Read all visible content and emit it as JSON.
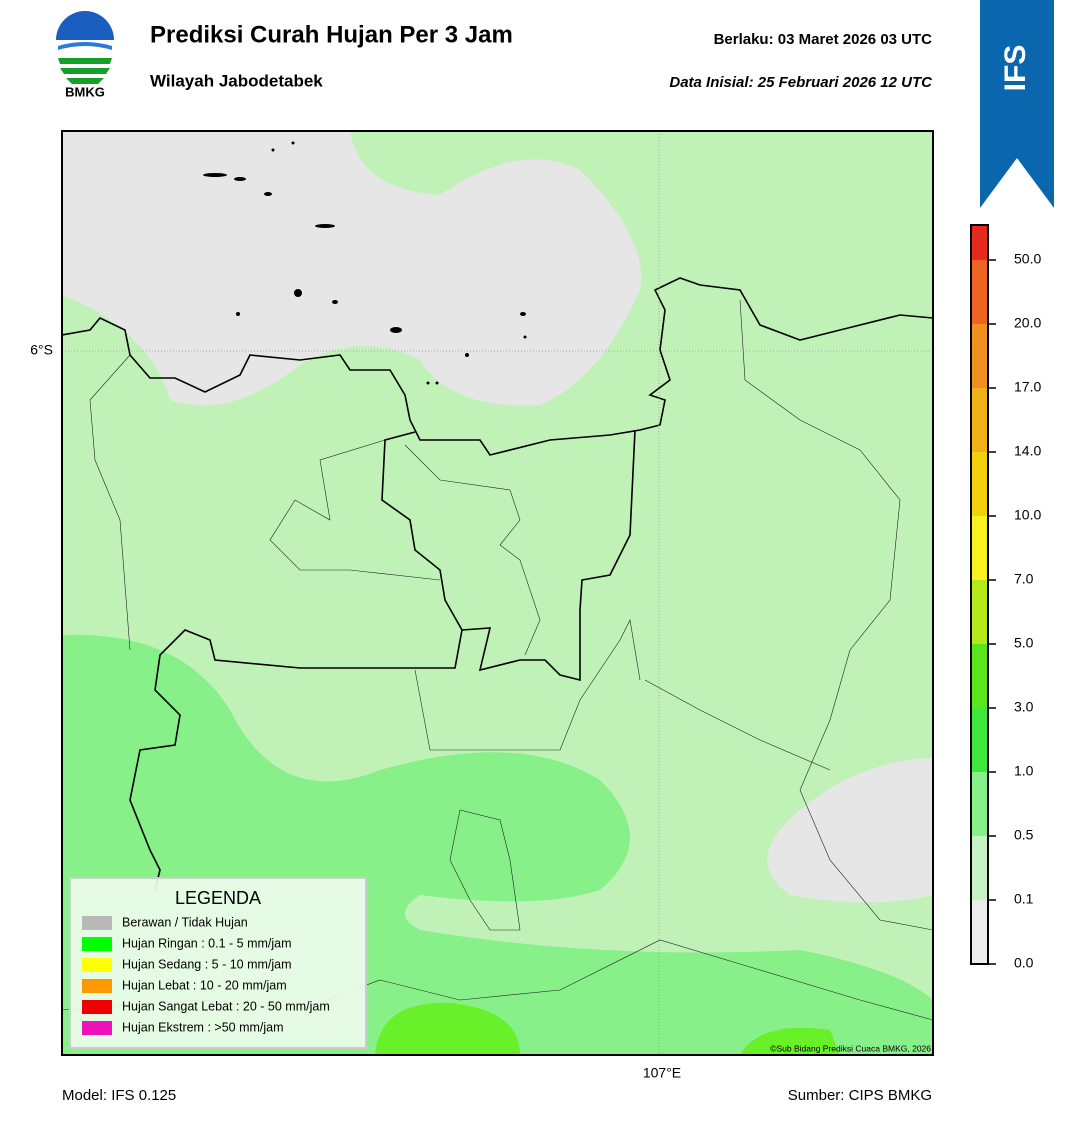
{
  "header": {
    "title": "Prediksi Curah Hujan Per 3 Jam",
    "subtitle": "Wilayah Jabodetabek",
    "valid": "Berlaku:  03 Maret 2026 03 UTC",
    "init": "Data Inisial:  25 Februari 2026 12 UTC"
  },
  "logo": "BMKG",
  "badge": "IFS",
  "map": {
    "lat_label": "6°S",
    "lon_label": "107°E",
    "credit": "©Sub Bidang Prediksi Cuaca BMKG, 2026"
  },
  "colorbar": {
    "ticks": [
      "0.0",
      "0.1",
      "0.5",
      "1.0",
      "3.0",
      "5.0",
      "7.0",
      "10.0",
      "14.0",
      "17.0",
      "20.0",
      "50.0"
    ],
    "colors": [
      "#ececec",
      "#c4f2c0",
      "#88f088",
      "#3ee83a",
      "#5ae61a",
      "#b4e81a",
      "#f8f020",
      "#f2d010",
      "#f0b018",
      "#f09020",
      "#ee6420",
      "#e82a1e",
      "#e21ec8"
    ]
  },
  "legend": {
    "title": "LEGENDA",
    "items": [
      {
        "label": "Berawan / Tidak Hujan",
        "color": "#b8b8b8"
      },
      {
        "label": "Hujan Ringan : 0.1 - 5 mm/jam",
        "color": "#00ff00"
      },
      {
        "label": "Hujan Sedang : 5 - 10 mm/jam",
        "color": "#ffff00"
      },
      {
        "label": "Hujan Lebat : 10 - 20 mm/jam",
        "color": "#ff9900"
      },
      {
        "label": "Hujan Sangat Lebat : 20 - 50 mm/jam",
        "color": "#ee0000"
      },
      {
        "label": "Hujan Ekstrem : >50 mm/jam",
        "color": "#ee11bb"
      }
    ]
  },
  "footer": {
    "model": "Model: IFS 0.125",
    "source": "Sumber: CIPS BMKG"
  }
}
